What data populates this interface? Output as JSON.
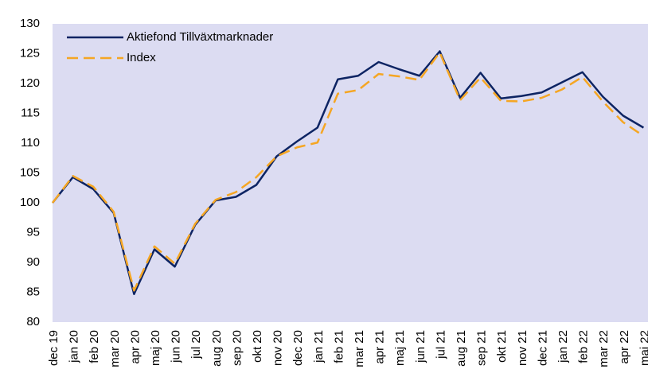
{
  "chart_data": {
    "type": "line",
    "categories": [
      "dec 19",
      "jan 20",
      "feb 20",
      "mar 20",
      "apr 20",
      "maj 20",
      "jun 20",
      "jul 20",
      "aug 20",
      "sep 20",
      "okt 20",
      "nov 20",
      "dec 20",
      "jan 21",
      "feb 21",
      "mar 21",
      "apr 21",
      "maj 21",
      "jun 21",
      "jul 21",
      "aug 21",
      "sep 21",
      "okt 21",
      "nov 21",
      "dec 21",
      "jan 22",
      "feb 22",
      "mar 22",
      "apr 22",
      "maj 22"
    ],
    "series": [
      {
        "name": "Aktiefond Tillväxtmarknader",
        "color": "#0d2463",
        "dashed": false,
        "values": [
          100,
          104.3,
          102.3,
          98.3,
          84.7,
          92.2,
          89.3,
          96.3,
          100.4,
          101.0,
          103.0,
          107.8,
          110.3,
          112.6,
          120.7,
          121.3,
          123.6,
          122.4,
          121.3,
          125.4,
          117.6,
          121.8,
          117.5,
          117.9,
          118.5,
          120.2,
          121.9,
          117.8,
          114.6,
          112.6
        ]
      },
      {
        "name": "Index",
        "color": "#f5a623",
        "dashed": true,
        "values": [
          100,
          104.5,
          102.7,
          98.5,
          85.3,
          92.7,
          89.8,
          96.5,
          100.5,
          101.8,
          104.3,
          107.8,
          109.3,
          110.1,
          118.3,
          118.9,
          121.6,
          121.2,
          120.6,
          125.2,
          117.2,
          121.0,
          117.1,
          117.0,
          117.6,
          119.0,
          121.1,
          117.0,
          113.5,
          111.2
        ]
      }
    ],
    "ylim": [
      80,
      130
    ],
    "yticks": [
      80,
      85,
      90,
      95,
      100,
      105,
      110,
      115,
      120,
      125,
      130
    ],
    "grid": false,
    "legend": "upper left",
    "background": "#dcdcf2"
  }
}
